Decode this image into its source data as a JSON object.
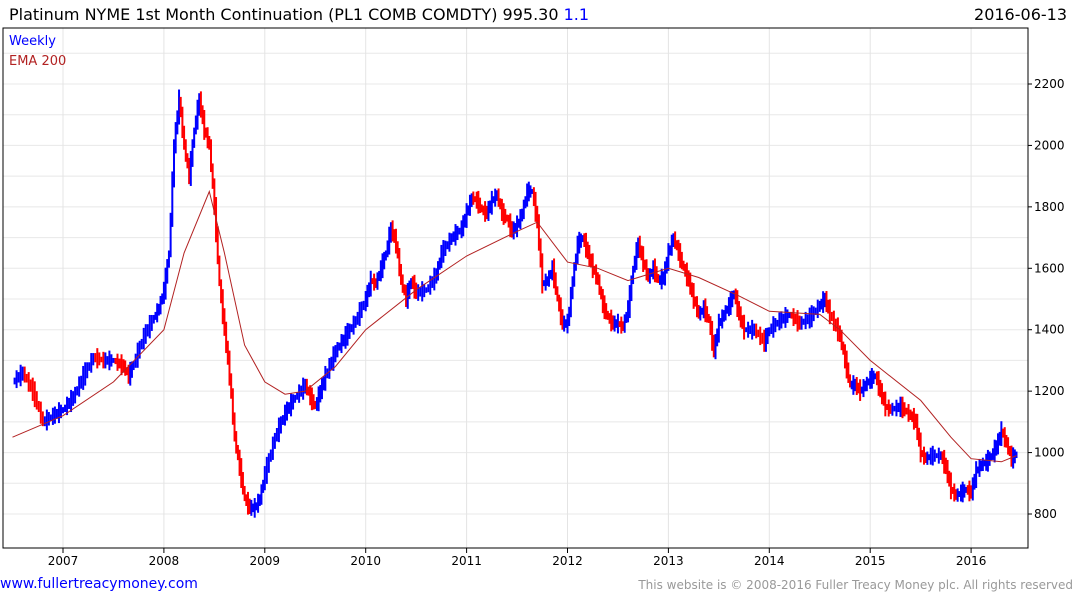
{
  "header": {
    "title": "Platinum NYME 1st Month Continuation (PL1 COMB COMDTY) 995.30",
    "change": "1.1",
    "date": "2016-06-13"
  },
  "footer": {
    "site": "www.fullertreacymoney.com",
    "copyright": "This website is © 2008-2016 Fuller Treacy Money plc. All rights reserved"
  },
  "chart_data": {
    "type": "line",
    "title": "Platinum NYME 1st Month Continuation (PL1 COMB COMDTY)",
    "legend": [
      "Weekly",
      "EMA 200"
    ],
    "legend_placement": "top-left",
    "colors": {
      "up": "#0000ff",
      "down": "#ff0000",
      "ema": "#b22222"
    },
    "xlim": [
      2006.45,
      2016.7
    ],
    "ylim": [
      700,
      2380
    ],
    "x_ticks": [
      2007,
      2008,
      2009,
      2010,
      2011,
      2012,
      2013,
      2014,
      2015,
      2016
    ],
    "y_ticks": [
      800,
      1000,
      1200,
      1400,
      1600,
      1800,
      2000,
      2200
    ],
    "price": [
      [
        2006.5,
        1230
      ],
      [
        2006.6,
        1260
      ],
      [
        2006.7,
        1200
      ],
      [
        2006.8,
        1100
      ],
      [
        2006.9,
        1120
      ],
      [
        2007.0,
        1140
      ],
      [
        2007.1,
        1180
      ],
      [
        2007.2,
        1250
      ],
      [
        2007.3,
        1310
      ],
      [
        2007.4,
        1300
      ],
      [
        2007.5,
        1300
      ],
      [
        2007.6,
        1280
      ],
      [
        2007.65,
        1250
      ],
      [
        2007.7,
        1290
      ],
      [
        2007.8,
        1380
      ],
      [
        2007.9,
        1440
      ],
      [
        2007.95,
        1470
      ],
      [
        2008.0,
        1530
      ],
      [
        2008.05,
        1650
      ],
      [
        2008.1,
        2000
      ],
      [
        2008.15,
        2150
      ],
      [
        2008.2,
        2000
      ],
      [
        2008.25,
        1900
      ],
      [
        2008.3,
        2050
      ],
      [
        2008.35,
        2150
      ],
      [
        2008.4,
        2050
      ],
      [
        2008.45,
        2000
      ],
      [
        2008.5,
        1800
      ],
      [
        2008.55,
        1550
      ],
      [
        2008.6,
        1400
      ],
      [
        2008.65,
        1250
      ],
      [
        2008.7,
        1050
      ],
      [
        2008.75,
        950
      ],
      [
        2008.8,
        850
      ],
      [
        2008.85,
        820
      ],
      [
        2008.9,
        820
      ],
      [
        2008.95,
        850
      ],
      [
        2009.0,
        930
      ],
      [
        2009.1,
        1050
      ],
      [
        2009.2,
        1130
      ],
      [
        2009.3,
        1180
      ],
      [
        2009.4,
        1220
      ],
      [
        2009.45,
        1180
      ],
      [
        2009.5,
        1150
      ],
      [
        2009.55,
        1200
      ],
      [
        2009.6,
        1250
      ],
      [
        2009.7,
        1330
      ],
      [
        2009.8,
        1380
      ],
      [
        2009.9,
        1430
      ],
      [
        2010.0,
        1500
      ],
      [
        2010.05,
        1560
      ],
      [
        2010.1,
        1550
      ],
      [
        2010.15,
        1600
      ],
      [
        2010.2,
        1650
      ],
      [
        2010.25,
        1730
      ],
      [
        2010.3,
        1680
      ],
      [
        2010.35,
        1560
      ],
      [
        2010.4,
        1500
      ],
      [
        2010.45,
        1560
      ],
      [
        2010.5,
        1520
      ],
      [
        2010.6,
        1530
      ],
      [
        2010.7,
        1580
      ],
      [
        2010.75,
        1650
      ],
      [
        2010.85,
        1700
      ],
      [
        2010.95,
        1730
      ],
      [
        2011.0,
        1780
      ],
      [
        2011.05,
        1830
      ],
      [
        2011.1,
        1820
      ],
      [
        2011.15,
        1790
      ],
      [
        2011.2,
        1780
      ],
      [
        2011.25,
        1820
      ],
      [
        2011.3,
        1840
      ],
      [
        2011.35,
        1780
      ],
      [
        2011.4,
        1760
      ],
      [
        2011.45,
        1720
      ],
      [
        2011.5,
        1740
      ],
      [
        2011.55,
        1780
      ],
      [
        2011.6,
        1850
      ],
      [
        2011.65,
        1850
      ],
      [
        2011.7,
        1750
      ],
      [
        2011.75,
        1550
      ],
      [
        2011.8,
        1560
      ],
      [
        2011.85,
        1600
      ],
      [
        2011.9,
        1500
      ],
      [
        2011.95,
        1420
      ],
      [
        2012.0,
        1420
      ],
      [
        2012.05,
        1560
      ],
      [
        2012.1,
        1680
      ],
      [
        2012.15,
        1700
      ],
      [
        2012.2,
        1650
      ],
      [
        2012.25,
        1600
      ],
      [
        2012.3,
        1560
      ],
      [
        2012.35,
        1480
      ],
      [
        2012.4,
        1440
      ],
      [
        2012.45,
        1420
      ],
      [
        2012.5,
        1420
      ],
      [
        2012.55,
        1410
      ],
      [
        2012.6,
        1470
      ],
      [
        2012.65,
        1600
      ],
      [
        2012.7,
        1680
      ],
      [
        2012.75,
        1620
      ],
      [
        2012.8,
        1570
      ],
      [
        2012.85,
        1600
      ],
      [
        2012.9,
        1560
      ],
      [
        2012.95,
        1570
      ],
      [
        2013.0,
        1650
      ],
      [
        2013.05,
        1700
      ],
      [
        2013.1,
        1650
      ],
      [
        2013.15,
        1600
      ],
      [
        2013.2,
        1560
      ],
      [
        2013.25,
        1500
      ],
      [
        2013.3,
        1450
      ],
      [
        2013.35,
        1470
      ],
      [
        2013.4,
        1430
      ],
      [
        2013.45,
        1330
      ],
      [
        2013.5,
        1420
      ],
      [
        2013.55,
        1450
      ],
      [
        2013.6,
        1480
      ],
      [
        2013.65,
        1520
      ],
      [
        2013.7,
        1450
      ],
      [
        2013.75,
        1400
      ],
      [
        2013.85,
        1400
      ],
      [
        2013.95,
        1360
      ],
      [
        2014.0,
        1400
      ],
      [
        2014.1,
        1430
      ],
      [
        2014.2,
        1450
      ],
      [
        2014.3,
        1420
      ],
      [
        2014.4,
        1440
      ],
      [
        2014.5,
        1480
      ],
      [
        2014.55,
        1500
      ],
      [
        2014.6,
        1450
      ],
      [
        2014.7,
        1380
      ],
      [
        2014.75,
        1300
      ],
      [
        2014.8,
        1220
      ],
      [
        2014.85,
        1220
      ],
      [
        2014.9,
        1200
      ],
      [
        2014.95,
        1220
      ],
      [
        2015.0,
        1240
      ],
      [
        2015.05,
        1250
      ],
      [
        2015.1,
        1200
      ],
      [
        2015.15,
        1150
      ],
      [
        2015.2,
        1140
      ],
      [
        2015.3,
        1150
      ],
      [
        2015.4,
        1120
      ],
      [
        2015.45,
        1100
      ],
      [
        2015.5,
        1000
      ],
      [
        2015.55,
        980
      ],
      [
        2015.6,
        990
      ],
      [
        2015.7,
        990
      ],
      [
        2015.75,
        950
      ],
      [
        2015.8,
        880
      ],
      [
        2015.85,
        860
      ],
      [
        2015.9,
        870
      ],
      [
        2015.95,
        880
      ],
      [
        2016.0,
        870
      ],
      [
        2016.05,
        940
      ],
      [
        2016.1,
        960
      ],
      [
        2016.15,
        970
      ],
      [
        2016.2,
        990
      ],
      [
        2016.25,
        1020
      ],
      [
        2016.3,
        1070
      ],
      [
        2016.35,
        1030
      ],
      [
        2016.4,
        980
      ],
      [
        2016.45,
        995.3
      ]
    ],
    "ema": [
      [
        2006.5,
        1050
      ],
      [
        2007.0,
        1120
      ],
      [
        2007.5,
        1230
      ],
      [
        2008.0,
        1400
      ],
      [
        2008.2,
        1650
      ],
      [
        2008.45,
        1850
      ],
      [
        2008.6,
        1650
      ],
      [
        2008.8,
        1350
      ],
      [
        2009.0,
        1230
      ],
      [
        2009.2,
        1190
      ],
      [
        2009.4,
        1200
      ],
      [
        2009.7,
        1280
      ],
      [
        2010.0,
        1400
      ],
      [
        2010.5,
        1530
      ],
      [
        2011.0,
        1640
      ],
      [
        2011.5,
        1720
      ],
      [
        2011.7,
        1750
      ],
      [
        2012.0,
        1620
      ],
      [
        2012.3,
        1600
      ],
      [
        2012.6,
        1560
      ],
      [
        2012.8,
        1580
      ],
      [
        2013.0,
        1600
      ],
      [
        2013.3,
        1570
      ],
      [
        2013.7,
        1510
      ],
      [
        2014.0,
        1460
      ],
      [
        2014.5,
        1450
      ],
      [
        2014.7,
        1400
      ],
      [
        2015.0,
        1300
      ],
      [
        2015.5,
        1170
      ],
      [
        2015.8,
        1050
      ],
      [
        2016.0,
        980
      ],
      [
        2016.3,
        970
      ],
      [
        2016.45,
        990
      ]
    ]
  }
}
